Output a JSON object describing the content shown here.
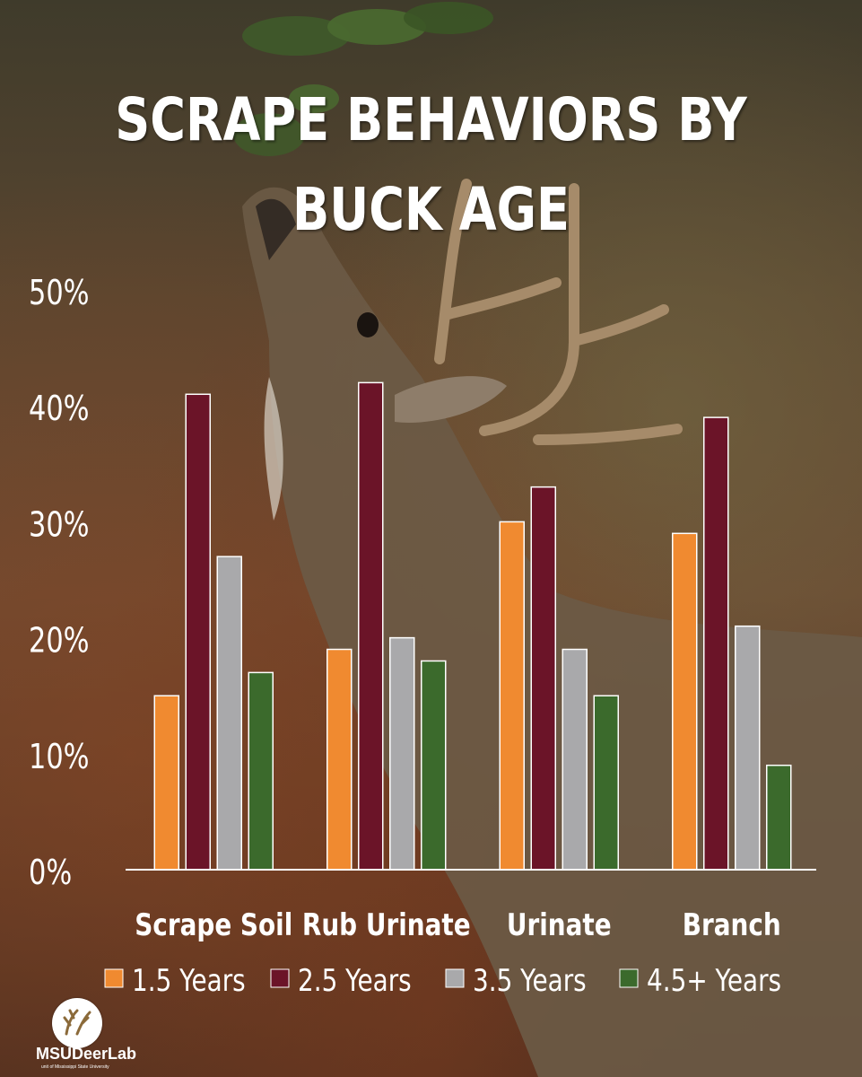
{
  "title": {
    "line1": "SCRAPE BEHAVIORS BY",
    "line2": "BUCK AGE"
  },
  "logo": {
    "name": "MSUDeerLab",
    "subtitle": "unit of Mississippi State University"
  },
  "colors": {
    "1.5 Years": "#f08a30",
    "2.5 Years": "#6b1428",
    "3.5 Years": "#a9a9ab",
    "4.5+ Years": "#3b6a2c",
    "text": "#ffffff"
  },
  "chart_data": {
    "type": "bar",
    "title": "SCRAPE BEHAVIORS BY BUCK AGE",
    "xlabel": "",
    "ylabel": "",
    "categories": [
      "Scrape Soil",
      "Rub Urinate",
      "Urinate",
      "Branch"
    ],
    "series": [
      {
        "name": "1.5 Years",
        "values": [
          15,
          19,
          30,
          29
        ]
      },
      {
        "name": "2.5 Years",
        "values": [
          41,
          42,
          33,
          39
        ]
      },
      {
        "name": "3.5 Years",
        "values": [
          27,
          20,
          19,
          21
        ]
      },
      {
        "name": "4.5+ Years",
        "values": [
          17,
          18,
          15,
          9
        ]
      }
    ],
    "ylim": [
      0,
      50
    ],
    "yticks": [
      "0%",
      "10%",
      "20%",
      "30%",
      "40%",
      "50%"
    ],
    "ytick_values": [
      0,
      10,
      20,
      30,
      40,
      50
    ],
    "grid": false,
    "legend": "bottom"
  }
}
